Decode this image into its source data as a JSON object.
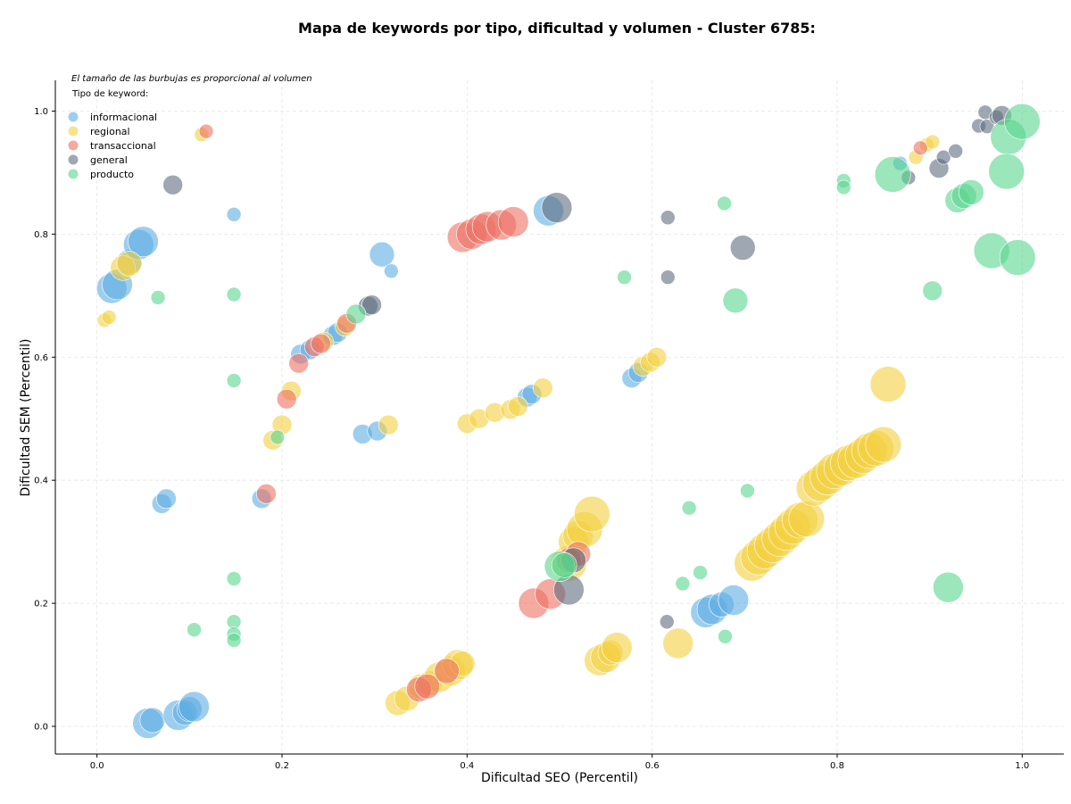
{
  "chart_data": {
    "type": "scatter",
    "title": "Mapa de keywords por tipo, dificultad y volumen - Cluster 6785:",
    "subtitle": "El tamaño de las burbujas es proporcional al volumen",
    "xlabel": "Dificultad SEO (Percentil)",
    "ylabel": "Dificultad SEM (Percentil)",
    "xlim": [
      -0.045,
      1.045
    ],
    "ylim": [
      -0.045,
      1.05
    ],
    "xticks": [
      "0.0",
      "0.2",
      "0.4",
      "0.6",
      "0.8",
      "1.0"
    ],
    "yticks": [
      "0.0",
      "0.2",
      "0.4",
      "0.6",
      "0.8",
      "1.0"
    ],
    "grid": true,
    "legend_title": "Tipo de keyword:",
    "legend_position": "top-left",
    "series": [
      {
        "name": "informacional",
        "color": "#5dade2",
        "points": [
          [
            0.016,
            0.712,
            4
          ],
          [
            0.022,
            0.718,
            4
          ],
          [
            0.035,
            0.755,
            3
          ],
          [
            0.045,
            0.783,
            4
          ],
          [
            0.05,
            0.788,
            4
          ],
          [
            0.055,
            0.005,
            4
          ],
          [
            0.06,
            0.01,
            3
          ],
          [
            0.07,
            0.362,
            2
          ],
          [
            0.075,
            0.37,
            2
          ],
          [
            0.088,
            0.018,
            4
          ],
          [
            0.095,
            0.022,
            3
          ],
          [
            0.1,
            0.028,
            3
          ],
          [
            0.105,
            0.032,
            4
          ],
          [
            0.148,
            0.832,
            1
          ],
          [
            0.178,
            0.37,
            2
          ],
          [
            0.22,
            0.605,
            2
          ],
          [
            0.23,
            0.612,
            2
          ],
          [
            0.255,
            0.635,
            2
          ],
          [
            0.26,
            0.64,
            2
          ],
          [
            0.287,
            0.475,
            2
          ],
          [
            0.303,
            0.48,
            2
          ],
          [
            0.308,
            0.767,
            3
          ],
          [
            0.318,
            0.74,
            1
          ],
          [
            0.465,
            0.535,
            2
          ],
          [
            0.47,
            0.54,
            2
          ],
          [
            0.488,
            0.838,
            4
          ],
          [
            0.578,
            0.566,
            2
          ],
          [
            0.585,
            0.575,
            2
          ],
          [
            0.658,
            0.185,
            4
          ],
          [
            0.665,
            0.19,
            4
          ],
          [
            0.675,
            0.198,
            3
          ],
          [
            0.688,
            0.205,
            4
          ],
          [
            0.868,
            0.915,
            1
          ]
        ]
      },
      {
        "name": "regional",
        "color": "#f4d03f",
        "points": [
          [
            0.008,
            0.66,
            1
          ],
          [
            0.013,
            0.665,
            1
          ],
          [
            0.028,
            0.745,
            3
          ],
          [
            0.035,
            0.752,
            3
          ],
          [
            0.113,
            0.962,
            1
          ],
          [
            0.19,
            0.465,
            2
          ],
          [
            0.2,
            0.49,
            2
          ],
          [
            0.21,
            0.545,
            2
          ],
          [
            0.245,
            0.625,
            2
          ],
          [
            0.268,
            0.65,
            2
          ],
          [
            0.325,
            0.038,
            3
          ],
          [
            0.335,
            0.045,
            3
          ],
          [
            0.35,
            0.065,
            3
          ],
          [
            0.36,
            0.07,
            3
          ],
          [
            0.37,
            0.08,
            4
          ],
          [
            0.382,
            0.09,
            4
          ],
          [
            0.39,
            0.1,
            4
          ],
          [
            0.395,
            0.102,
            3
          ],
          [
            0.315,
            0.49,
            2
          ],
          [
            0.4,
            0.492,
            2
          ],
          [
            0.413,
            0.5,
            2
          ],
          [
            0.43,
            0.51,
            2
          ],
          [
            0.447,
            0.515,
            2
          ],
          [
            0.455,
            0.52,
            2
          ],
          [
            0.482,
            0.55,
            2
          ],
          [
            0.51,
            0.265,
            5
          ],
          [
            0.515,
            0.3,
            4
          ],
          [
            0.52,
            0.31,
            4
          ],
          [
            0.527,
            0.32,
            5
          ],
          [
            0.535,
            0.345,
            5
          ],
          [
            0.543,
            0.107,
            4
          ],
          [
            0.55,
            0.112,
            4
          ],
          [
            0.555,
            0.12,
            3
          ],
          [
            0.562,
            0.128,
            4
          ],
          [
            0.59,
            0.585,
            2
          ],
          [
            0.598,
            0.592,
            2
          ],
          [
            0.605,
            0.6,
            2
          ],
          [
            0.628,
            0.135,
            4
          ],
          [
            0.708,
            0.265,
            5
          ],
          [
            0.715,
            0.275,
            5
          ],
          [
            0.722,
            0.285,
            5
          ],
          [
            0.73,
            0.295,
            5
          ],
          [
            0.738,
            0.305,
            5
          ],
          [
            0.745,
            0.315,
            5
          ],
          [
            0.752,
            0.325,
            5
          ],
          [
            0.76,
            0.335,
            5
          ],
          [
            0.767,
            0.337,
            5
          ],
          [
            0.775,
            0.387,
            5
          ],
          [
            0.782,
            0.395,
            5
          ],
          [
            0.79,
            0.405,
            5
          ],
          [
            0.797,
            0.415,
            5
          ],
          [
            0.805,
            0.42,
            5
          ],
          [
            0.812,
            0.428,
            5
          ],
          [
            0.82,
            0.432,
            5
          ],
          [
            0.828,
            0.44,
            5
          ],
          [
            0.835,
            0.448,
            5
          ],
          [
            0.842,
            0.452,
            5
          ],
          [
            0.85,
            0.458,
            5
          ],
          [
            0.855,
            0.556,
            5
          ],
          [
            0.885,
            0.925,
            1
          ],
          [
            0.897,
            0.945,
            1
          ],
          [
            0.903,
            0.95,
            1
          ]
        ]
      },
      {
        "name": "transaccional",
        "color": "#ec7063",
        "points": [
          [
            0.118,
            0.967,
            1
          ],
          [
            0.183,
            0.378,
            2
          ],
          [
            0.205,
            0.532,
            2
          ],
          [
            0.218,
            0.59,
            2
          ],
          [
            0.235,
            0.617,
            2
          ],
          [
            0.242,
            0.622,
            2
          ],
          [
            0.27,
            0.655,
            2
          ],
          [
            0.348,
            0.06,
            3
          ],
          [
            0.357,
            0.065,
            3
          ],
          [
            0.378,
            0.09,
            3
          ],
          [
            0.395,
            0.795,
            4
          ],
          [
            0.405,
            0.8,
            4
          ],
          [
            0.415,
            0.808,
            4
          ],
          [
            0.422,
            0.812,
            4
          ],
          [
            0.437,
            0.815,
            4
          ],
          [
            0.45,
            0.82,
            4
          ],
          [
            0.472,
            0.2,
            4
          ],
          [
            0.49,
            0.215,
            4
          ],
          [
            0.51,
            0.27,
            3
          ],
          [
            0.52,
            0.28,
            3
          ],
          [
            0.89,
            0.94,
            1
          ]
        ]
      },
      {
        "name": "general",
        "color": "#5d6d7e",
        "points": [
          [
            0.082,
            0.88,
            2
          ],
          [
            0.293,
            0.683,
            2
          ],
          [
            0.297,
            0.685,
            2
          ],
          [
            0.497,
            0.843,
            4
          ],
          [
            0.51,
            0.222,
            4
          ],
          [
            0.515,
            0.27,
            3
          ],
          [
            0.616,
            0.17,
            1
          ],
          [
            0.617,
            0.827,
            1
          ],
          [
            0.617,
            0.73,
            1
          ],
          [
            0.698,
            0.778,
            3
          ],
          [
            0.877,
            0.892,
            1
          ],
          [
            0.91,
            0.907,
            2
          ],
          [
            0.915,
            0.925,
            1
          ],
          [
            0.928,
            0.935,
            1
          ],
          [
            0.953,
            0.976,
            1
          ],
          [
            0.96,
            0.998,
            1
          ],
          [
            0.962,
            0.975,
            1
          ],
          [
            0.972,
            0.99,
            1
          ],
          [
            0.978,
            0.993,
            2
          ]
        ]
      },
      {
        "name": "producto",
        "color": "#58d68d",
        "points": [
          [
            0.066,
            0.697,
            1
          ],
          [
            0.105,
            0.157,
            1
          ],
          [
            0.148,
            0.702,
            1
          ],
          [
            0.148,
            0.562,
            1
          ],
          [
            0.148,
            0.24,
            1
          ],
          [
            0.148,
            0.17,
            1
          ],
          [
            0.148,
            0.15,
            1
          ],
          [
            0.148,
            0.14,
            1
          ],
          [
            0.195,
            0.47,
            1
          ],
          [
            0.28,
            0.67,
            2
          ],
          [
            0.5,
            0.26,
            4
          ],
          [
            0.505,
            0.262,
            3
          ],
          [
            0.57,
            0.73,
            1
          ],
          [
            0.633,
            0.232,
            1
          ],
          [
            0.64,
            0.355,
            1
          ],
          [
            0.652,
            0.25,
            1
          ],
          [
            0.678,
            0.85,
            1
          ],
          [
            0.679,
            0.146,
            1
          ],
          [
            0.69,
            0.692,
            3
          ],
          [
            0.703,
            0.383,
            1
          ],
          [
            0.807,
            0.887,
            1
          ],
          [
            0.807,
            0.876,
            1
          ],
          [
            0.86,
            0.897,
            5
          ],
          [
            0.903,
            0.708,
            2
          ],
          [
            0.92,
            0.226,
            4
          ],
          [
            0.93,
            0.855,
            3
          ],
          [
            0.937,
            0.862,
            3
          ],
          [
            0.945,
            0.868,
            3
          ],
          [
            0.967,
            0.773,
            5
          ],
          [
            0.985,
            0.958,
            5
          ],
          [
            0.983,
            0.902,
            5
          ],
          [
            0.995,
            0.762,
            5
          ],
          [
            1.0,
            0.983,
            5
          ]
        ]
      }
    ]
  }
}
